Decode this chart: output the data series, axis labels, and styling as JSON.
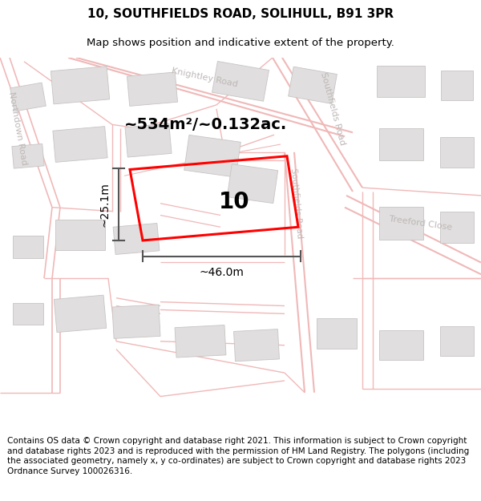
{
  "title_line1": "10, SOUTHFIELDS ROAD, SOLIHULL, B91 3PR",
  "title_line2": "Map shows position and indicative extent of the property.",
  "footer_text": "Contains OS data © Crown copyright and database right 2021. This information is subject to Crown copyright and database rights 2023 and is reproduced with the permission of HM Land Registry. The polygons (including the associated geometry, namely x, y co-ordinates) are subject to Crown copyright and database rights 2023 Ordnance Survey 100026316.",
  "area_label": "~534m²/~0.132ac.",
  "width_label": "~46.0m",
  "height_label": "~25.1m",
  "number_label": "10",
  "map_bg": "#f8f6f6",
  "road_color": "#f0b8b8",
  "road_lw": 1.5,
  "building_color": "#e0dede",
  "building_edge": "#c8c4c4",
  "plot_edge": "red",
  "dim_color": "#555555",
  "road_label_color": "#c0b8b8",
  "title_fontsize": 11,
  "subtitle_fontsize": 9.5,
  "footer_fontsize": 7.5
}
